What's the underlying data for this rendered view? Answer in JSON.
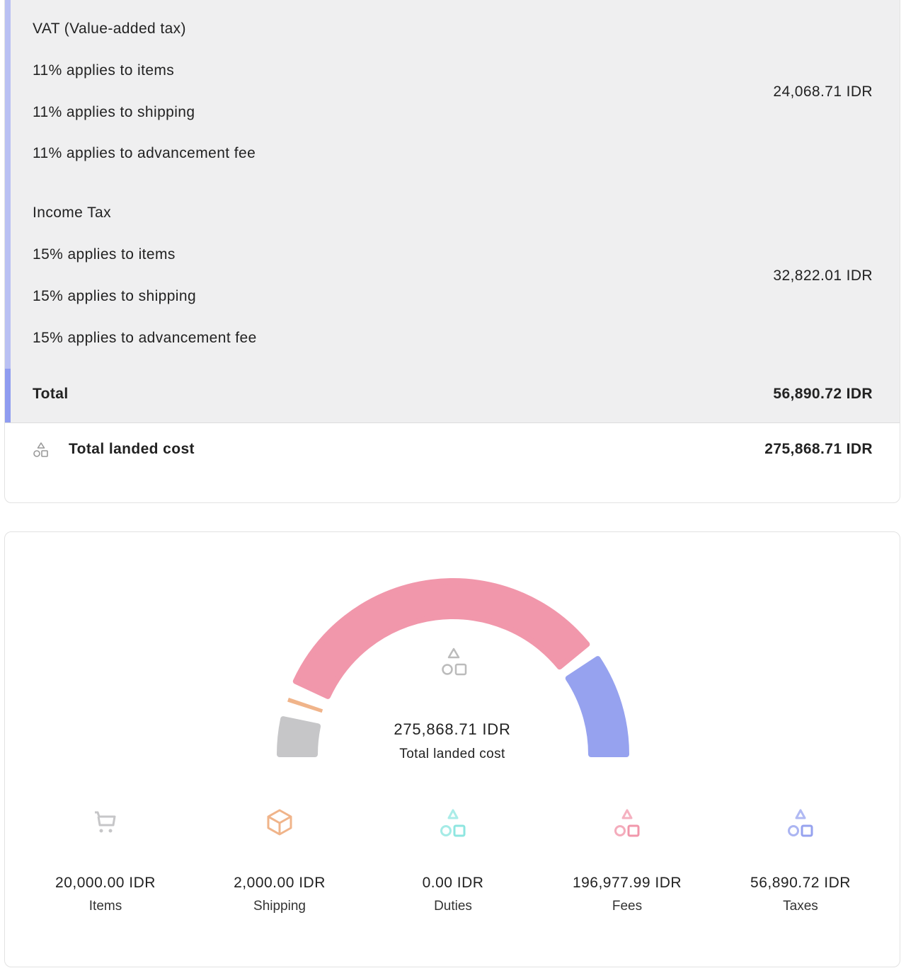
{
  "vat": {
    "title": "VAT (Value-added tax)",
    "lines": [
      "11% applies to items",
      "11% applies to shipping",
      "11% applies to advancement fee"
    ],
    "amount": "24,068.71 IDR"
  },
  "income": {
    "title": "Income Tax",
    "lines": [
      "15% applies to items",
      "15% applies to shipping",
      "15% applies to advancement fee"
    ],
    "amount": "32,822.01 IDR"
  },
  "total": {
    "label": "Total",
    "amount": "56,890.72 IDR"
  },
  "landed": {
    "label": "Total landed cost",
    "amount": "275,868.71 IDR",
    "icon": "shapes-icon"
  },
  "chart_data": {
    "type": "gauge",
    "center_value": "275,868.71 IDR",
    "center_label": "Total landed cost",
    "categories": [
      "Items",
      "Shipping",
      "Duties",
      "Fees",
      "Taxes"
    ],
    "values": [
      20000.0,
      2000.0,
      0.0,
      196977.99,
      56890.72
    ],
    "display_values": [
      "20,000.00 IDR",
      "2,000.00 IDR",
      "0.00 IDR",
      "196,977.99 IDR",
      "56,890.72 IDR"
    ],
    "colors": [
      "#c6c6c8",
      "#f0b48a",
      "#8ee6e0",
      "#f197ab",
      "#96a2ef"
    ],
    "icons": [
      "cart-icon",
      "box-icon",
      "shapes-icon",
      "shapes-icon",
      "shapes-icon"
    ]
  }
}
